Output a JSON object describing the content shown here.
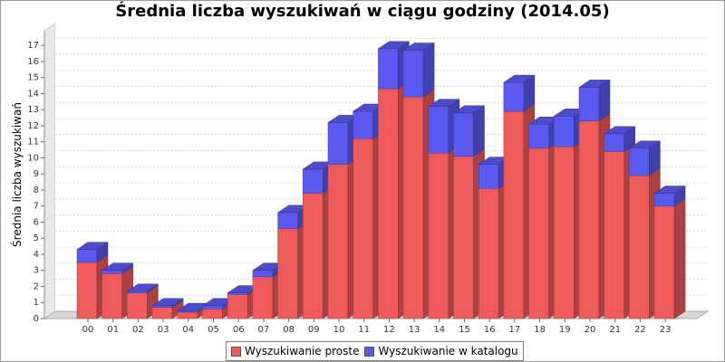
{
  "chart_data": {
    "type": "bar",
    "stacked": true,
    "style": "3d",
    "title": "Średnia liczba wyszukiwań w ciągu godziny (2014.05)",
    "ylabel": "Średnia liczba wyszukiwań",
    "xlabel": "",
    "ylim": [
      0,
      17.8
    ],
    "yticks": [
      "0",
      "1",
      "2",
      "3",
      "4",
      "5",
      "6",
      "7",
      "8",
      "9",
      "10",
      "11",
      "12",
      "13",
      "14",
      "15",
      "16",
      "17"
    ],
    "grid": true,
    "legend_position": "bottom",
    "categories": [
      "00",
      "01",
      "02",
      "03",
      "04",
      "05",
      "06",
      "07",
      "08",
      "09",
      "10",
      "11",
      "12",
      "13",
      "14",
      "15",
      "16",
      "17",
      "18",
      "19",
      "20",
      "21",
      "22",
      "23"
    ],
    "series": [
      {
        "name": "Wyszukiwanie proste",
        "color": "#ef5a5a",
        "values": [
          3.5,
          2.8,
          1.6,
          0.7,
          0.4,
          0.6,
          1.5,
          2.6,
          5.6,
          7.8,
          9.6,
          11.2,
          14.3,
          13.8,
          10.3,
          10.1,
          8.1,
          12.9,
          10.6,
          10.7,
          12.3,
          10.4,
          8.9,
          7.0
        ]
      },
      {
        "name": "Wyszukiwanie w katalogu",
        "color": "#5a5af0",
        "values": [
          0.8,
          0.2,
          0.1,
          0.1,
          0.1,
          0.2,
          0.1,
          0.4,
          1.0,
          1.5,
          2.6,
          1.7,
          2.5,
          2.9,
          2.9,
          2.7,
          1.5,
          1.8,
          1.5,
          1.9,
          2.1,
          1.1,
          1.7,
          0.8
        ]
      }
    ]
  }
}
